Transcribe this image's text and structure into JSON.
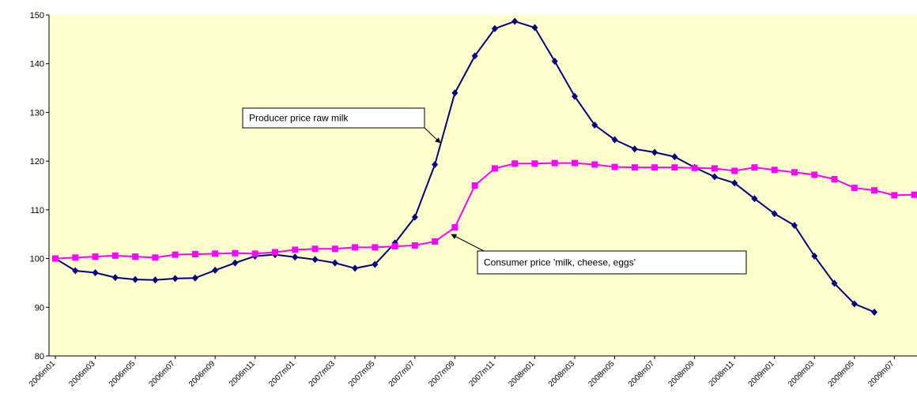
{
  "chart_data": {
    "type": "line",
    "categories": [
      "2006m01",
      null,
      "2006m03",
      null,
      "2006m05",
      null,
      "2006m07",
      null,
      "2006m09",
      null,
      "2006m11",
      null,
      "2007m01",
      null,
      "2007m03",
      null,
      "2007m05",
      null,
      "2007m07",
      null,
      "2007m09",
      null,
      "2007m11",
      null,
      "2008m01",
      null,
      "2008m03",
      null,
      "2008m05",
      null,
      "2008m07",
      null,
      "2008m09",
      null,
      "2008m11",
      null,
      "2009m01",
      null,
      "2009m03",
      null,
      "2009m05",
      null,
      "2009m07",
      null
    ],
    "series": [
      {
        "name": "Producer price raw milk",
        "color": "#000080",
        "marker": "diamond",
        "values": [
          100,
          97.5,
          97.1,
          96.1,
          95.7,
          95.6,
          95.9,
          96.0,
          97.6,
          99.1,
          100.5,
          100.8,
          100.3,
          99.8,
          99.1,
          98.0,
          98.8,
          103.2,
          108.5,
          119.3,
          134.0,
          141.6,
          147.2,
          148.7,
          147.4,
          140.5,
          133.3,
          127.4,
          124.4,
          122.5,
          121.8,
          120.9,
          118.7,
          116.8,
          115.5,
          112.3,
          109.2,
          106.8,
          100.5,
          94.9,
          90.7,
          89.0,
          null,
          null
        ]
      },
      {
        "name": "Consumer price 'milk, cheese, eggs'",
        "color": "#ff00ff",
        "marker": "square",
        "values": [
          100,
          100.2,
          100.4,
          100.6,
          100.4,
          100.2,
          100.8,
          100.9,
          101.0,
          101.1,
          101.0,
          101.3,
          101.8,
          102.0,
          102.0,
          102.3,
          102.3,
          102.5,
          102.7,
          103.5,
          106.4,
          115.0,
          118.5,
          119.5,
          119.5,
          119.6,
          119.6,
          119.3,
          118.8,
          118.7,
          118.7,
          118.7,
          118.6,
          118.5,
          118.0,
          118.7,
          118.2,
          117.7,
          117.2,
          116.3,
          114.5,
          114.0,
          113.0,
          113.1
        ]
      }
    ],
    "ylim": [
      80,
      150
    ],
    "yticks": [
      80,
      90,
      100,
      110,
      120,
      130,
      140,
      150
    ],
    "grid": false,
    "background": "#ffffcc"
  }
}
